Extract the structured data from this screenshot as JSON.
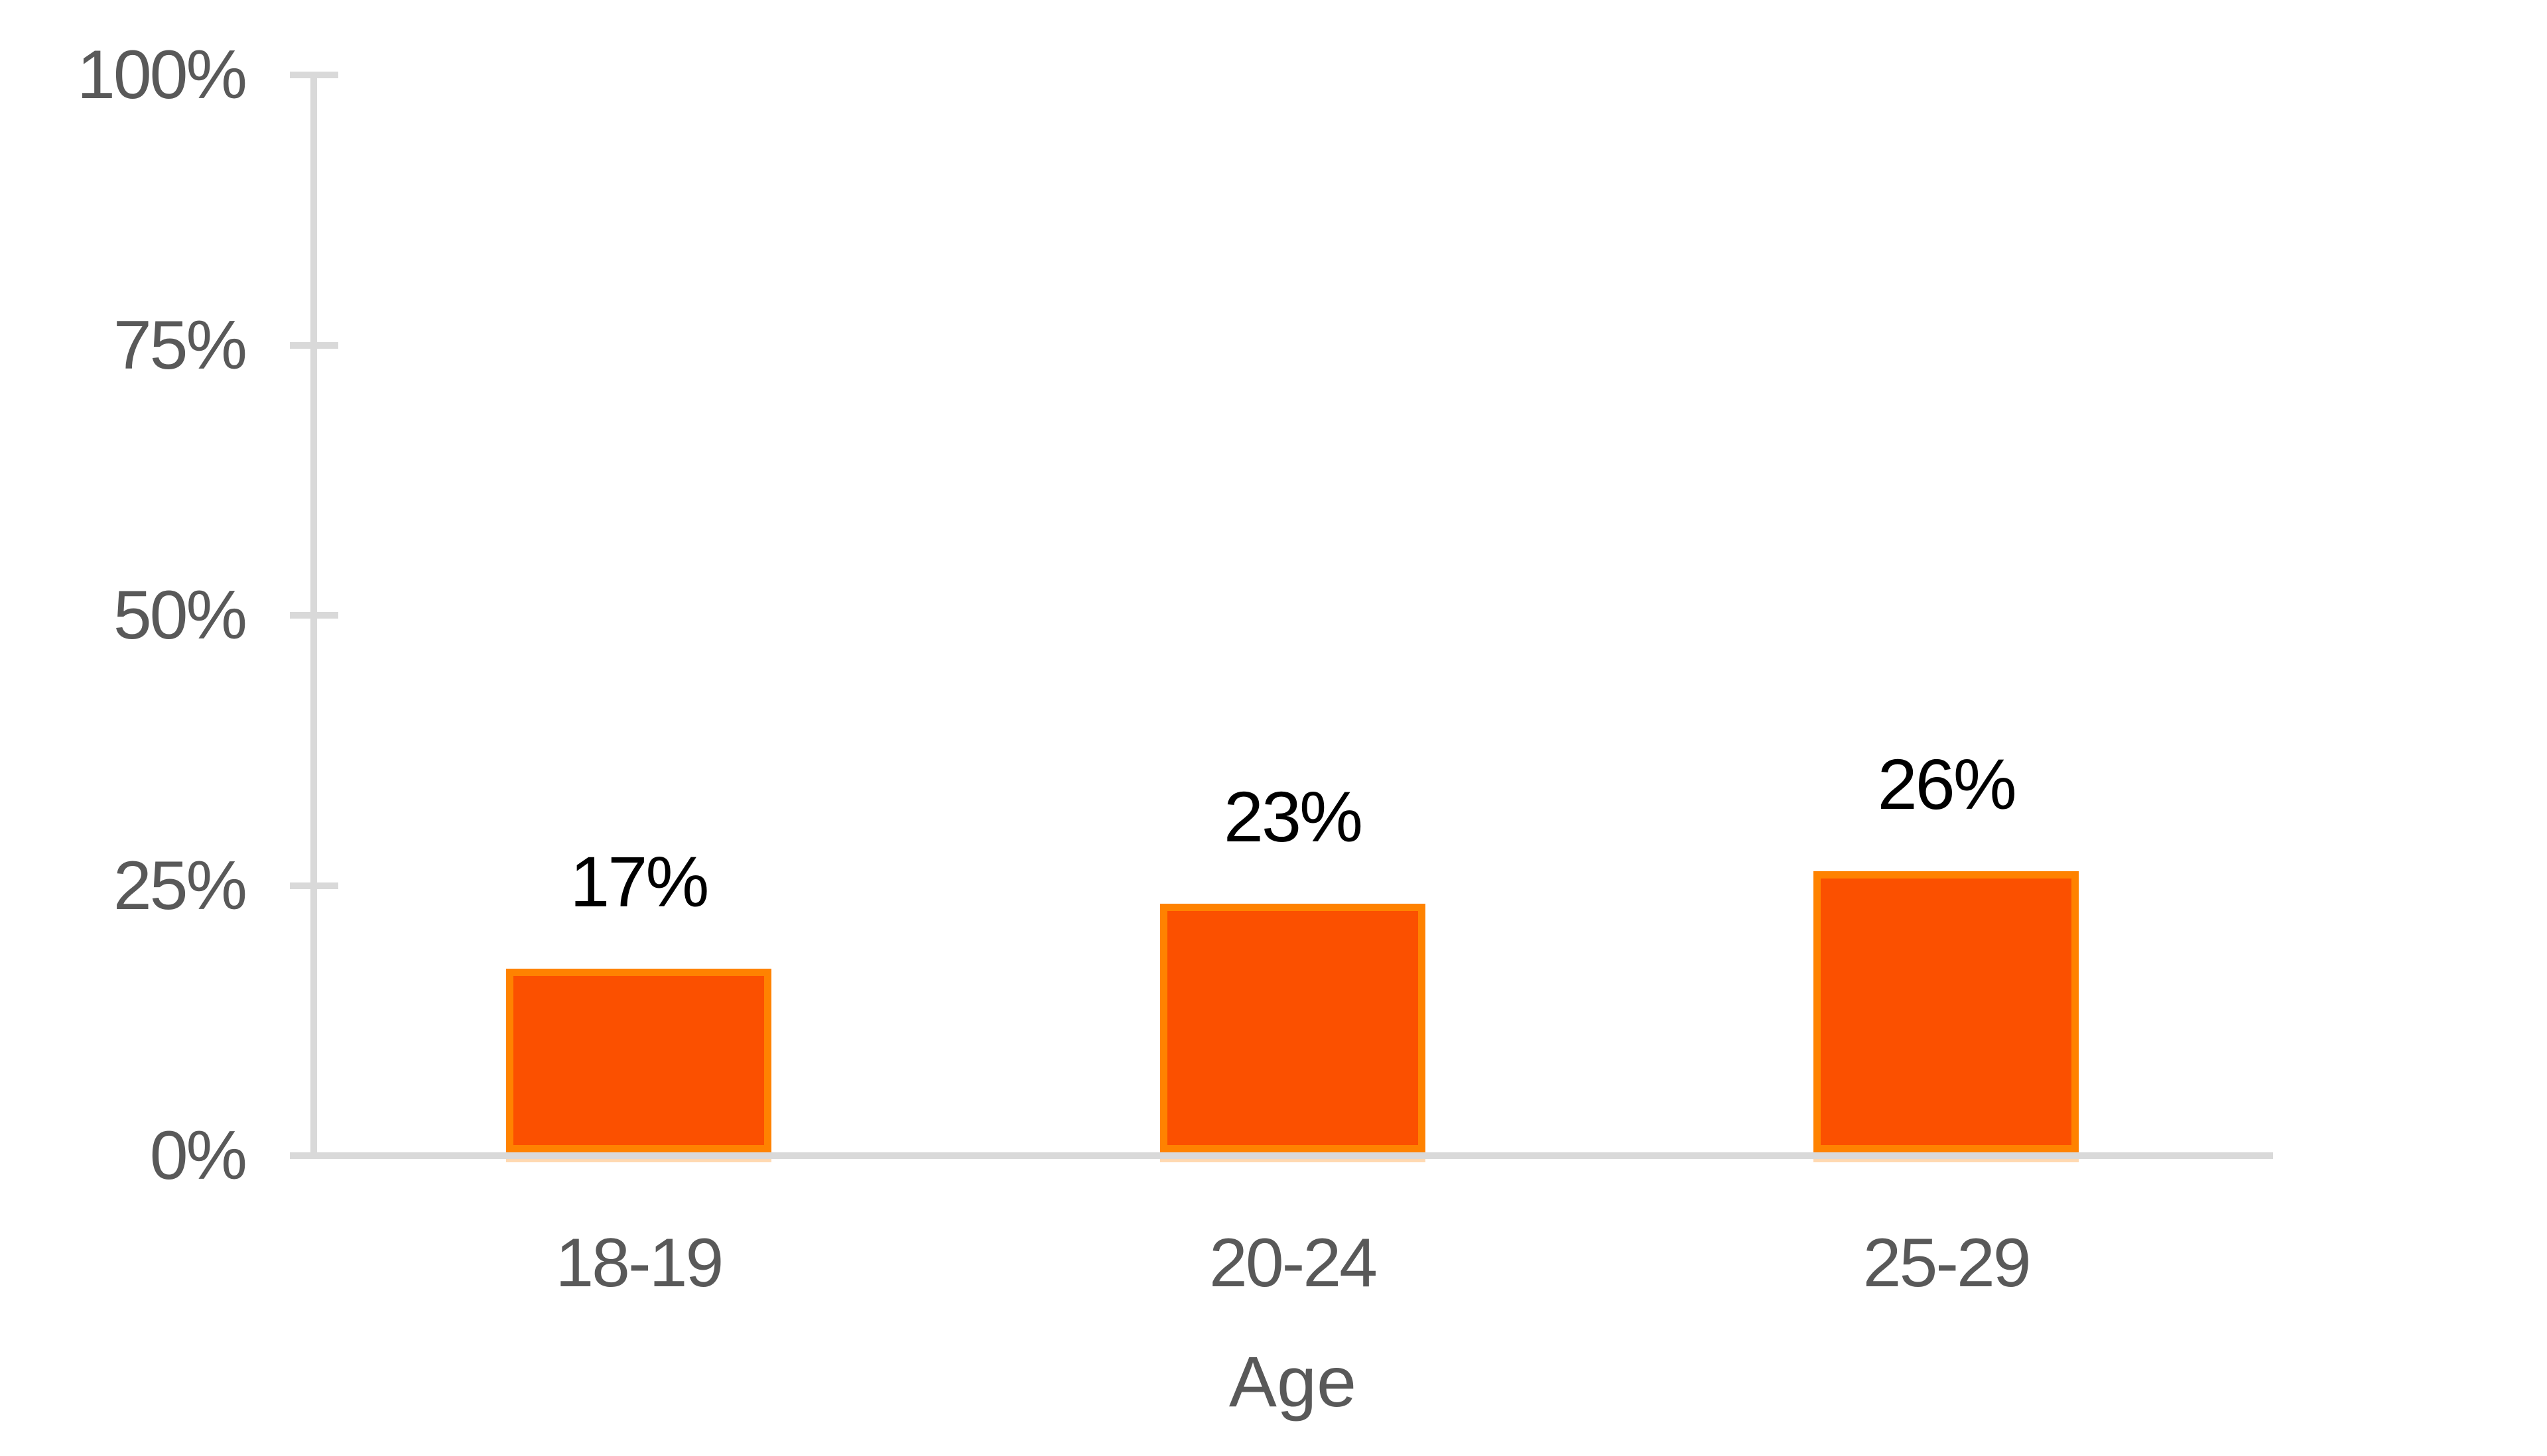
{
  "chart_data": {
    "type": "bar",
    "categories": [
      "18-19",
      "20-24",
      "25-29"
    ],
    "values": [
      17,
      23,
      26
    ],
    "data_labels": [
      "17%",
      "23%",
      "26%"
    ],
    "title": "",
    "xlabel": "Age",
    "ylabel": "",
    "ylim": [
      0,
      100
    ],
    "ytick_values": [
      0,
      25,
      50,
      75,
      100
    ],
    "ytick_labels": [
      "0%",
      "25%",
      "50%",
      "75%",
      "100%"
    ],
    "grid": "off",
    "legend": "none",
    "colors": {
      "bar_fill": "#FB5000",
      "bar_border": "#FF8200",
      "axis_line": "#D9D9D9",
      "tick_label_text": "#595959",
      "data_label_text": "#000000",
      "background": "#FFFFFF"
    }
  }
}
